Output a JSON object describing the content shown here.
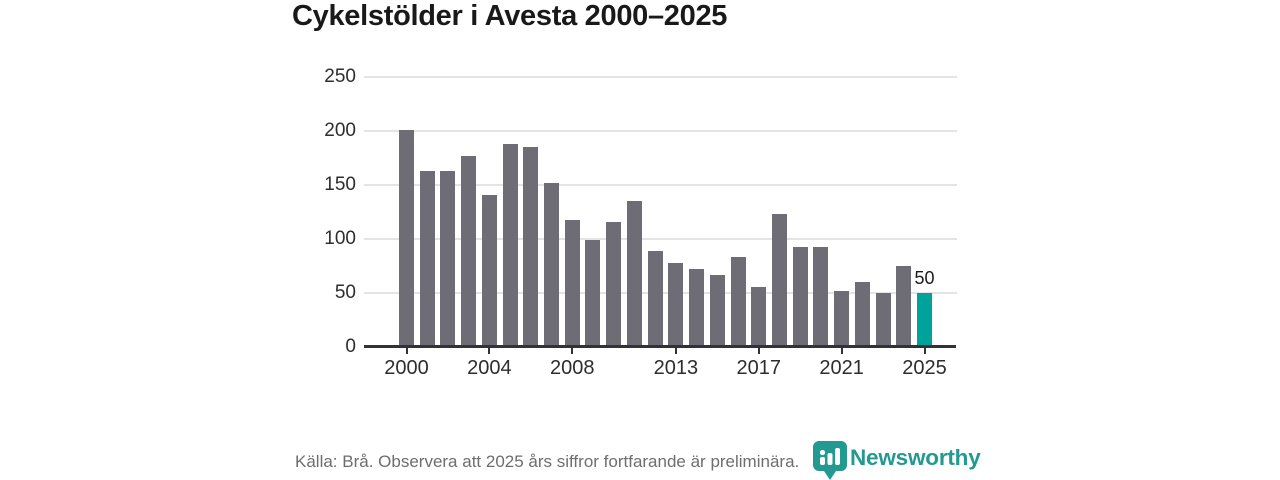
{
  "title": "Cykelstölder i Avesta 2000–2025",
  "footer": {
    "source_note": "Källa: Brå. Observera att 2025 års siffror fortfarande är preliminära.",
    "logo_text": "Newsworthy"
  },
  "colors": {
    "bar": "#6e6d75",
    "highlight_bar": "#00a39b",
    "logo_teal": "#229a91",
    "grid": "#e4e4e4",
    "axis": "#333333",
    "tick_text": "#2d2d2d",
    "muted_text": "#6e6e6e"
  },
  "chart_data": {
    "type": "bar",
    "title": "Cykelstölder i Avesta 2000–2025",
    "x": [
      2000,
      2001,
      2002,
      2003,
      2004,
      2005,
      2006,
      2007,
      2008,
      2009,
      2010,
      2011,
      2012,
      2013,
      2014,
      2015,
      2016,
      2017,
      2018,
      2019,
      2020,
      2021,
      2022,
      2023,
      2024,
      2025
    ],
    "values": [
      201,
      163,
      163,
      177,
      141,
      188,
      185,
      152,
      118,
      99,
      116,
      135,
      89,
      78,
      72,
      67,
      83,
      56,
      123,
      93,
      93,
      52,
      60,
      50,
      75,
      50
    ],
    "highlight": {
      "year": 2025,
      "value_label": "50"
    },
    "ylim": [
      0,
      250
    ],
    "yticks": [
      0,
      50,
      100,
      150,
      200,
      250
    ],
    "xtick_years": [
      2000,
      2004,
      2008,
      2013,
      2017,
      2021,
      2025
    ],
    "grid": true,
    "legend": "none",
    "bar_color": "#6e6d75",
    "highlight_color": "#00a39b"
  }
}
